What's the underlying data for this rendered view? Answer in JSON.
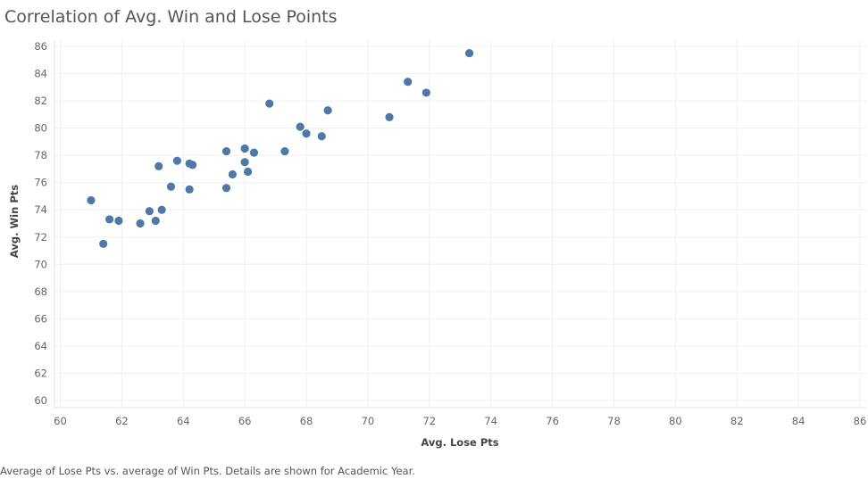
{
  "title": "Correlation of Avg. Win and Lose Points",
  "caption": "Average of Lose Pts vs. average of Win Pts.  Details are shown for Academic Year.",
  "chart_data": {
    "type": "scatter",
    "title": "Correlation of Avg. Win and Lose Points",
    "xlabel": "Avg. Lose Pts",
    "ylabel": "Avg. Win Pts",
    "xlim": [
      60,
      86
    ],
    "ylim": [
      60,
      86
    ],
    "x_ticks": [
      60,
      62,
      64,
      66,
      68,
      70,
      72,
      74,
      76,
      78,
      80,
      82,
      84,
      86
    ],
    "y_ticks": [
      60,
      62,
      64,
      66,
      68,
      70,
      72,
      74,
      76,
      78,
      80,
      82,
      84,
      86
    ],
    "grid": true,
    "point_color": "#4e79a7",
    "points": [
      {
        "x": 61.0,
        "y": 74.7
      },
      {
        "x": 61.4,
        "y": 71.5
      },
      {
        "x": 61.6,
        "y": 73.3
      },
      {
        "x": 61.9,
        "y": 73.2
      },
      {
        "x": 62.6,
        "y": 73.0
      },
      {
        "x": 62.9,
        "y": 73.9
      },
      {
        "x": 63.1,
        "y": 73.2
      },
      {
        "x": 63.2,
        "y": 77.2
      },
      {
        "x": 63.3,
        "y": 74.0
      },
      {
        "x": 63.6,
        "y": 75.7
      },
      {
        "x": 63.8,
        "y": 77.6
      },
      {
        "x": 64.2,
        "y": 77.4
      },
      {
        "x": 64.2,
        "y": 75.5
      },
      {
        "x": 64.3,
        "y": 77.3
      },
      {
        "x": 65.4,
        "y": 78.3
      },
      {
        "x": 65.4,
        "y": 75.6
      },
      {
        "x": 65.6,
        "y": 76.6
      },
      {
        "x": 66.0,
        "y": 78.5
      },
      {
        "x": 66.0,
        "y": 77.5
      },
      {
        "x": 66.1,
        "y": 76.8
      },
      {
        "x": 66.3,
        "y": 78.2
      },
      {
        "x": 66.8,
        "y": 81.8
      },
      {
        "x": 67.3,
        "y": 78.3
      },
      {
        "x": 67.8,
        "y": 80.1
      },
      {
        "x": 68.0,
        "y": 79.6
      },
      {
        "x": 68.5,
        "y": 79.4
      },
      {
        "x": 68.7,
        "y": 81.3
      },
      {
        "x": 70.7,
        "y": 80.8
      },
      {
        "x": 71.3,
        "y": 83.4
      },
      {
        "x": 71.9,
        "y": 82.6
      },
      {
        "x": 73.3,
        "y": 85.5
      }
    ]
  }
}
